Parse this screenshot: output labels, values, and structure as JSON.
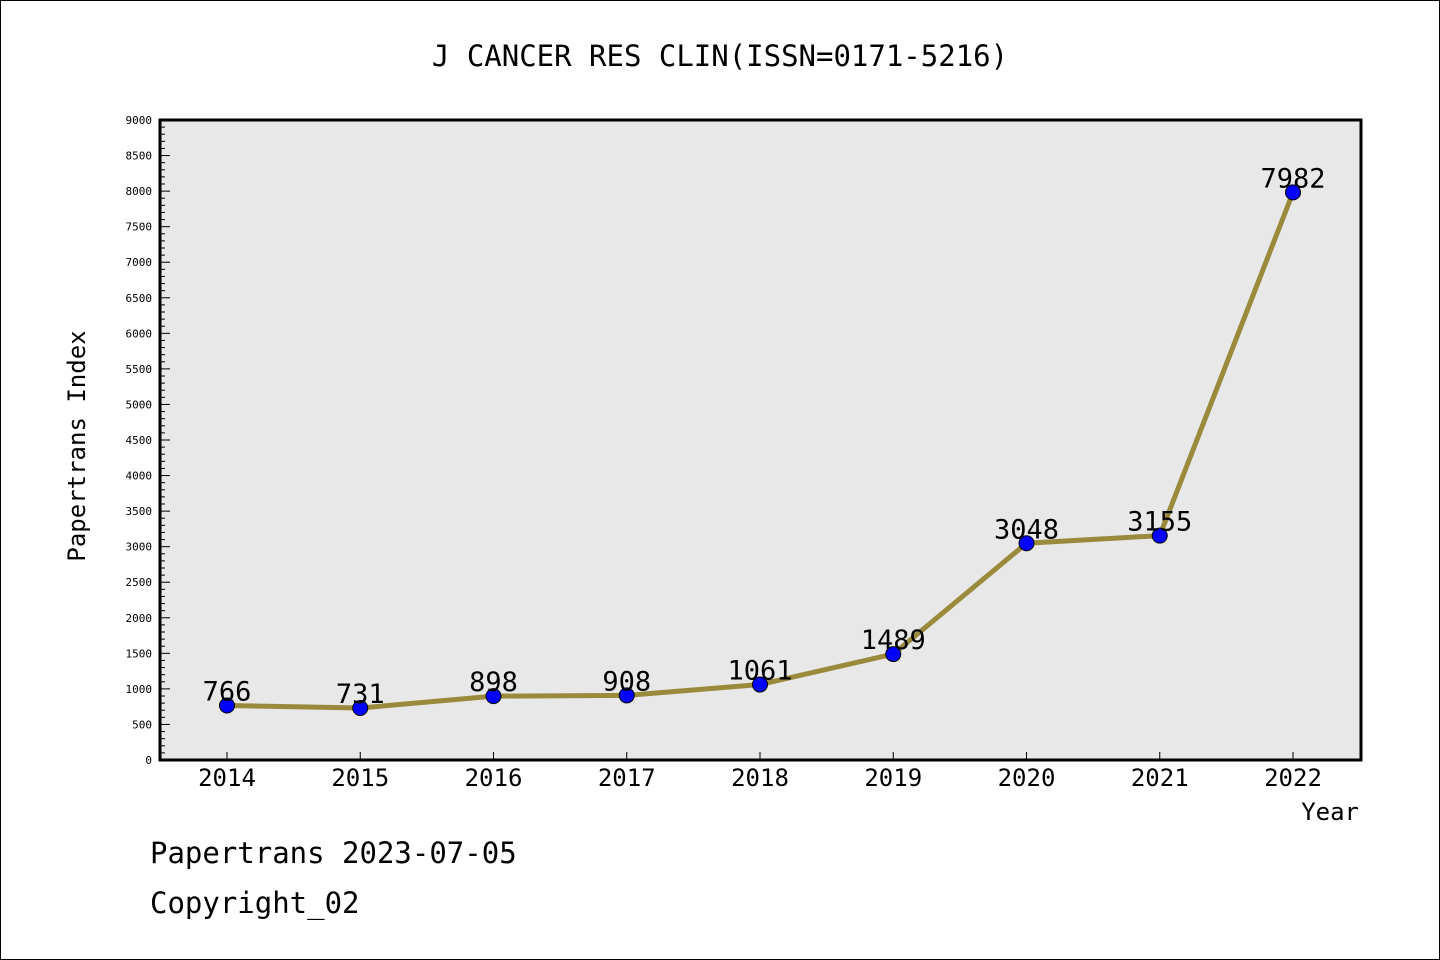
{
  "chart_data": {
    "type": "line",
    "title": "J CANCER RES CLIN(ISSN=0171-5216)",
    "xlabel": "Year",
    "ylabel": "Papertrans Index",
    "categories": [
      "2014",
      "2015",
      "2016",
      "2017",
      "2018",
      "2019",
      "2020",
      "2021",
      "2022"
    ],
    "series": [
      {
        "values": [
          766,
          731,
          898,
          908,
          1061,
          1489,
          3048,
          3155,
          7982
        ]
      }
    ],
    "data_labels": [
      "766",
      "731",
      "898",
      "908",
      "1061",
      "1489",
      "3048",
      "3155",
      "7982"
    ],
    "ylim": [
      0,
      9000
    ],
    "y_ticks": [
      "0",
      "500",
      "1000",
      "1500",
      "2000",
      "2500",
      "3000",
      "3500",
      "4000",
      "4500",
      "5000",
      "5500",
      "6000",
      "6500",
      "7000",
      "7500",
      "8000",
      "8500",
      "9000"
    ],
    "grid": false,
    "legend": "none",
    "colors": {
      "line": "#9a8a3c",
      "marker": "#0000ff",
      "plot_background": "#e8e8e8"
    }
  },
  "footer": {
    "line1": "Papertrans 2023-07-05",
    "line2": "Copyright_02"
  }
}
